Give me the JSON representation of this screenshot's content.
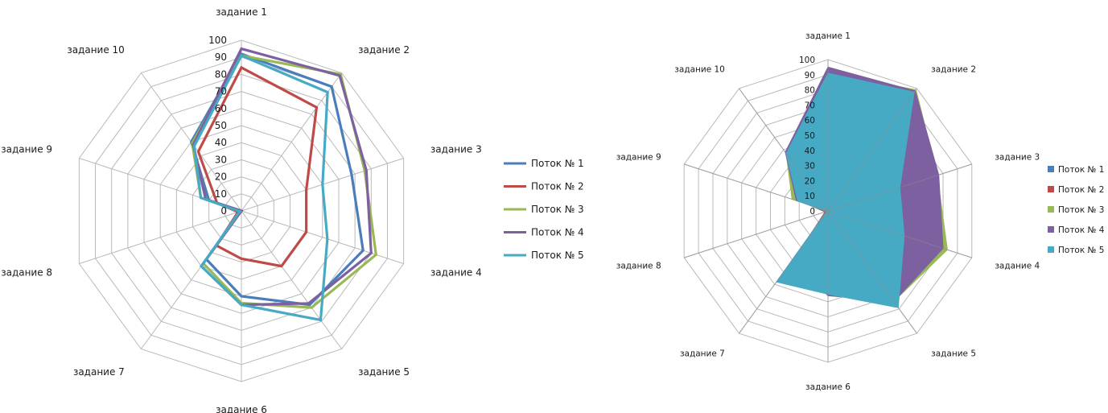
{
  "chart_data": [
    {
      "type": "radar",
      "style": "lines",
      "categories": [
        "задание 1",
        "задание 2",
        "задание 3",
        "задание 4",
        "задание 5",
        "задание 6",
        "задание 7",
        "задание 8",
        "задание 9",
        "задание 10"
      ],
      "rlim": [
        0,
        100
      ],
      "ticks": [
        0,
        10,
        20,
        30,
        40,
        50,
        60,
        70,
        80,
        90,
        100
      ],
      "grid": true,
      "legend_position": "right",
      "series": [
        {
          "name": "Поток № 1",
          "color": "#4a7ebb",
          "values": [
            92,
            90,
            68,
            75,
            68,
            50,
            35,
            0,
            20,
            50
          ]
        },
        {
          "name": "Поток № 2",
          "color": "#be4b48",
          "values": [
            84,
            75,
            40,
            40,
            40,
            28,
            25,
            2,
            15,
            43
          ]
        },
        {
          "name": "Поток № 3",
          "color": "#98b954",
          "values": [
            91,
            99,
            76,
            83,
            70,
            54,
            38,
            0,
            25,
            49
          ]
        },
        {
          "name": "Поток № 4",
          "color": "#7d60a0",
          "values": [
            95,
            98,
            77,
            80,
            67,
            55,
            40,
            0,
            22,
            48
          ]
        },
        {
          "name": "Поток № 5",
          "color": "#46aac5",
          "values": [
            91,
            86,
            50,
            53,
            79,
            55,
            40,
            1,
            25,
            47
          ]
        }
      ]
    },
    {
      "type": "radar",
      "style": "filled",
      "categories": [
        "задание 1",
        "задание 2",
        "задание 3",
        "задание 4",
        "задание 5",
        "задание 6",
        "задание 7",
        "задание 8",
        "задание 9",
        "задание 10"
      ],
      "rlim": [
        0,
        100
      ],
      "ticks": [
        0,
        10,
        20,
        30,
        40,
        50,
        60,
        70,
        80,
        90,
        100
      ],
      "grid": true,
      "legend_position": "right",
      "series": [
        {
          "name": "Поток № 1",
          "color": "#4a7ebb",
          "values": [
            90,
            90,
            60,
            75,
            68,
            50,
            35,
            0,
            20,
            45
          ]
        },
        {
          "name": "Поток № 2",
          "color": "#be4b48",
          "values": [
            84,
            75,
            40,
            40,
            40,
            28,
            25,
            2,
            15,
            40
          ]
        },
        {
          "name": "Поток № 3",
          "color": "#98b954",
          "values": [
            91,
            99,
            76,
            83,
            74,
            56,
            40,
            0,
            25,
            47
          ]
        },
        {
          "name": "Поток № 4",
          "color": "#7d60a0",
          "values": [
            95,
            98,
            77,
            80,
            74,
            56,
            40,
            0,
            22,
            48
          ]
        },
        {
          "name": "Поток № 5",
          "color": "#46aac5",
          "values": [
            91,
            97,
            50,
            53,
            79,
            55,
            58,
            1,
            21,
            47
          ]
        }
      ]
    }
  ]
}
